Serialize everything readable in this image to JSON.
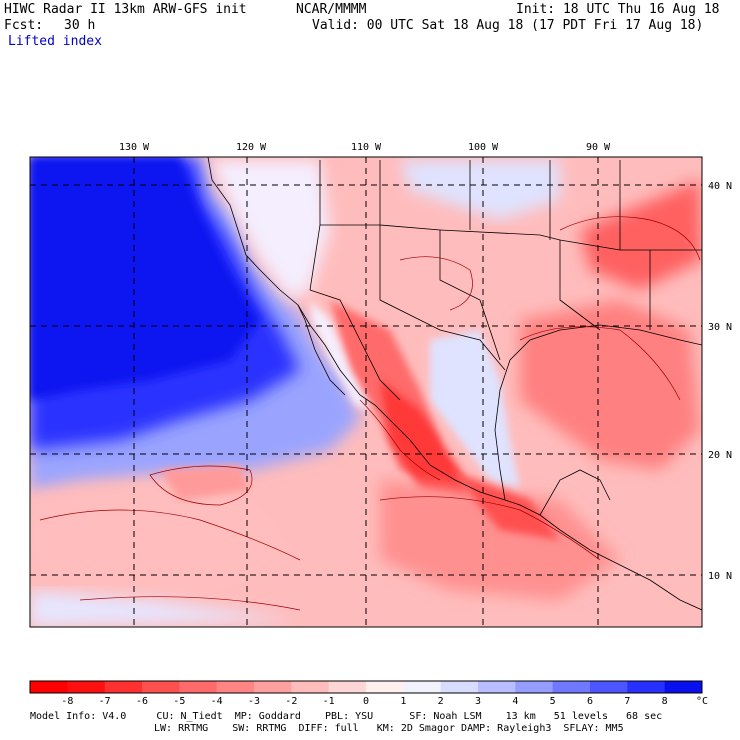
{
  "header": {
    "model_line": "HIWC Radar II 13km ARW-GFS init",
    "org": "NCAR/MMMM",
    "init_line": "Init: 18 UTC Thu 16 Aug 18",
    "fcst_label": "Fcst:",
    "fcst_value": "30 h",
    "valid_line": "Valid: 00 UTC Sat 18 Aug 18 (17 PDT Fri 17 Aug 18)",
    "field": "Lifted index"
  },
  "map": {
    "lon_labels": [
      "130 W",
      "120 W",
      "110 W",
      "100 W",
      "90 W"
    ],
    "lat_labels": [
      "40 N",
      "30 N",
      "20 N",
      "10 N"
    ]
  },
  "colorbar": {
    "ticks": [
      "-8",
      "-7",
      "-6",
      "-5",
      "-4",
      "-3",
      "-2",
      "-1",
      "0",
      "1",
      "2",
      "3",
      "4",
      "5",
      "6",
      "7",
      "8"
    ],
    "unit": "°C",
    "colors": [
      "#ff1010",
      "#ff3030",
      "#ff5050",
      "#ff6a6a",
      "#ff8585",
      "#ffa0a0",
      "#ffbcbc",
      "#ffd6d6",
      "#ffefef",
      "#f2f2ff",
      "#d8dcff",
      "#b8beff",
      "#959dff",
      "#7078ff",
      "#4c55ff",
      "#2830ff",
      "#0810f0"
    ]
  },
  "footer": {
    "line1": "Model Info: V4.0     CU: N_Tiedt  MP: Goddard    PBL: YSU      SF: Noah LSM    13 km   51 levels   68 sec",
    "line2": "LW: RRTMG    SW: RRTMG  DIFF: full   KM: 2D Smagor DAMP: Rayleigh3  SFLAY: MM5"
  }
}
